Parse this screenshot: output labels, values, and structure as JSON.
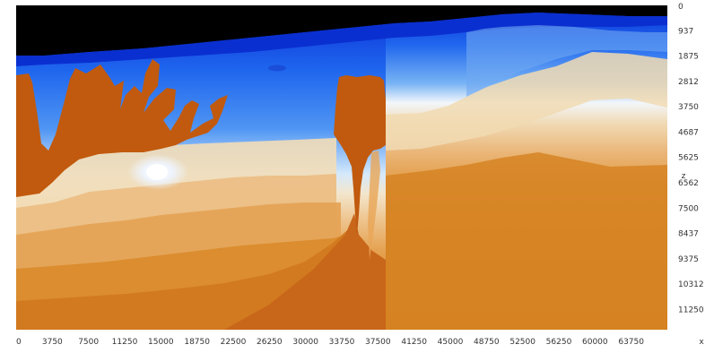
{
  "chart_data": {
    "type": "heatmap",
    "title": "",
    "xlabel": "x",
    "ylabel": "z",
    "x_ticks": [
      "0",
      "3750",
      "7500",
      "11250",
      "15000",
      "18750",
      "22500",
      "26250",
      "30000",
      "33750",
      "37500",
      "41250",
      "45000",
      "48750",
      "52500",
      "56250",
      "60000",
      "63750"
    ],
    "y_ticks": [
      "0",
      "937",
      "1875",
      "2812",
      "3750",
      "4687",
      "5625",
      "6562",
      "7500",
      "8437",
      "9375",
      "10312",
      "11250"
    ],
    "xlim": [
      0,
      67500
    ],
    "ylim": [
      0,
      12000
    ],
    "y_inverted": true,
    "grid": false,
    "legend": "none",
    "colormap": [
      "#000000",
      "#0b2fd6",
      "#1f66ee",
      "#4f95f3",
      "#8ec3f5",
      "#e8f1fb",
      "#f3e2c6",
      "#eec58f",
      "#e6a656",
      "#dc8f33",
      "#d27a1f",
      "#c15a0e"
    ],
    "features": [
      {
        "name": "water-layer",
        "color": "#1e5ae8"
      },
      {
        "name": "salt-body",
        "color": "#c15a0e"
      },
      {
        "name": "sediments",
        "color": "#d9892b"
      }
    ]
  }
}
